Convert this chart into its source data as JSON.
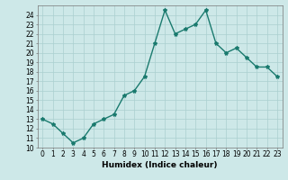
{
  "x": [
    0,
    1,
    2,
    3,
    4,
    5,
    6,
    7,
    8,
    9,
    10,
    11,
    12,
    13,
    14,
    15,
    16,
    17,
    18,
    19,
    20,
    21,
    22,
    23
  ],
  "y": [
    13.0,
    12.5,
    11.5,
    10.5,
    11.0,
    12.5,
    13.0,
    13.5,
    15.5,
    16.0,
    17.5,
    21.0,
    24.5,
    22.0,
    22.5,
    23.0,
    24.5,
    21.0,
    20.0,
    20.5,
    19.5,
    18.5,
    18.5,
    17.5
  ],
  "line_color": "#1a7a6e",
  "marker": "*",
  "marker_size": 3,
  "bg_color": "#cde8e8",
  "grid_color": "#aacfcf",
  "xlabel": "Humidex (Indice chaleur)",
  "ylim": [
    10,
    25
  ],
  "xlim": [
    -0.5,
    23.5
  ],
  "yticks": [
    10,
    11,
    12,
    13,
    14,
    15,
    16,
    17,
    18,
    19,
    20,
    21,
    22,
    23,
    24
  ],
  "xticks": [
    0,
    1,
    2,
    3,
    4,
    5,
    6,
    7,
    8,
    9,
    10,
    11,
    12,
    13,
    14,
    15,
    16,
    17,
    18,
    19,
    20,
    21,
    22,
    23
  ],
  "tick_fontsize": 5.5,
  "xlabel_fontsize": 6.5,
  "line_width": 1.0
}
